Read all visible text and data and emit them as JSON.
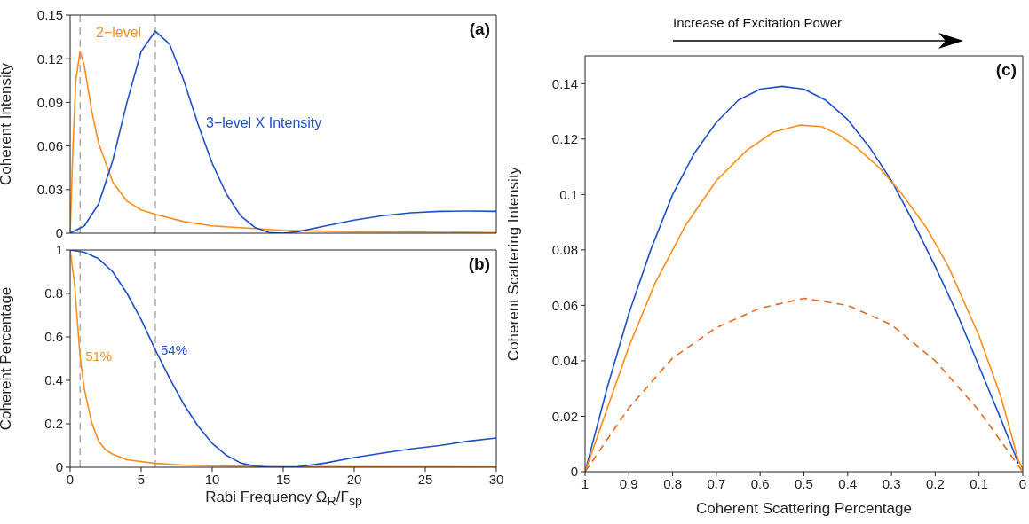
{
  "chart_data": [
    {
      "type": "line",
      "ylabel": "Coherent Intensity",
      "xlim": [
        0,
        30
      ],
      "xticks": [
        0,
        5,
        10,
        15,
        20,
        25,
        30
      ],
      "ylim": [
        0,
        0.15
      ],
      "yticks": [
        0,
        0.03,
        0.06,
        0.09,
        0.12,
        0.15
      ],
      "tick_labels": "y",
      "marker": "none",
      "line_style": "solid",
      "annotations": [
        "(a)"
      ],
      "ref_lines": [
        {
          "axis": "x",
          "value": 0.7,
          "label": null,
          "color": "#a0a0a0",
          "line_style": "dashed"
        },
        {
          "axis": "x",
          "value": 6,
          "label": null,
          "color": "#a0a0a0",
          "line_style": "dashed"
        }
      ],
      "series": [
        {
          "name": "2−level",
          "color": "#ff8c1a",
          "x": [
            0,
            0.2,
            0.4,
            0.7,
            1,
            1.5,
            2,
            3,
            4,
            5,
            6,
            8,
            10,
            15,
            20,
            30
          ],
          "values": [
            0,
            0.06,
            0.105,
            0.125,
            0.115,
            0.085,
            0.062,
            0.035,
            0.022,
            0.016,
            0.013,
            0.008,
            0.005,
            0.002,
            0.001,
            0.0005
          ]
        },
        {
          "name": "3−level X Intensity",
          "color": "#1f4fc8",
          "x": [
            0,
            1,
            2,
            3,
            4,
            5,
            6,
            7,
            8,
            9,
            10,
            11,
            12,
            13,
            14,
            15,
            16,
            18,
            20,
            22,
            24,
            26,
            28,
            30
          ],
          "values": [
            0,
            0.005,
            0.02,
            0.05,
            0.09,
            0.125,
            0.139,
            0.13,
            0.105,
            0.075,
            0.048,
            0.027,
            0.012,
            0.004,
            0.0005,
            0,
            0.001,
            0.005,
            0.009,
            0.012,
            0.014,
            0.015,
            0.0152,
            0.015
          ]
        }
      ]
    },
    {
      "type": "line",
      "xlabel": "Rabi Frequency Ω$_{R}$/Γ$_{sp}$",
      "ylabel": "Coherent Percentage",
      "xlim": [
        0,
        30
      ],
      "xticks": [
        0,
        5,
        10,
        15,
        20,
        25,
        30
      ],
      "ylim": [
        0,
        1
      ],
      "yticks": [
        0,
        0.2,
        0.4,
        0.6,
        0.8,
        1
      ],
      "marker": "none",
      "line_style": "solid",
      "annotations": [
        "(b)",
        {
          "text": "51%",
          "x": 0.7,
          "y": 0.51
        },
        {
          "text": "54%",
          "x": 6,
          "y": 0.54
        }
      ],
      "ref_lines": [
        {
          "axis": "x",
          "value": 0.7,
          "label": null,
          "color": "#a0a0a0",
          "line_style": "dashed"
        },
        {
          "axis": "x",
          "value": 6,
          "label": null,
          "color": "#a0a0a0",
          "line_style": "dashed"
        }
      ],
      "series": [
        {
          "color": "#ff8c1a",
          "x": [
            0,
            0.3,
            0.7,
            1,
            1.5,
            2,
            2.5,
            3,
            4,
            6,
            8,
            10,
            15,
            30
          ],
          "values": [
            1,
            0.85,
            0.51,
            0.36,
            0.21,
            0.12,
            0.08,
            0.06,
            0.035,
            0.018,
            0.01,
            0.006,
            0.003,
            0.001
          ]
        },
        {
          "color": "#1f4fc8",
          "x": [
            0,
            1,
            2,
            3,
            4,
            5,
            6,
            7,
            8,
            9,
            10,
            11,
            12,
            13,
            14,
            15,
            16,
            18,
            20,
            22,
            24,
            26,
            28,
            30
          ],
          "values": [
            1,
            0.99,
            0.96,
            0.9,
            0.8,
            0.68,
            0.54,
            0.41,
            0.29,
            0.19,
            0.11,
            0.055,
            0.02,
            0.005,
            0,
            0,
            0.002,
            0.02,
            0.045,
            0.065,
            0.085,
            0.1,
            0.12,
            0.135
          ]
        }
      ]
    },
    {
      "type": "line",
      "xlabel": "Coherent Scattering Percentage",
      "ylabel": "Coherent Scattering Intensity",
      "xlim": [
        1,
        0
      ],
      "xticks": [
        1,
        0.9,
        0.8,
        0.7,
        0.6,
        0.5,
        0.4,
        0.3,
        0.2,
        0.1,
        0
      ],
      "ylim": [
        0,
        0.15
      ],
      "yticks": [
        0,
        0.02,
        0.04,
        0.06,
        0.08,
        0.1,
        0.12,
        0.14
      ],
      "marker": "none",
      "annotations": [
        "(c)",
        "Increase of Excitation Power"
      ],
      "series": [
        {
          "color": "#1f4fc8",
          "line_style": "solid",
          "x": [
            1,
            0.95,
            0.9,
            0.85,
            0.8,
            0.75,
            0.7,
            0.65,
            0.6,
            0.55,
            0.5,
            0.45,
            0.4,
            0.35,
            0.3,
            0.25,
            0.2,
            0.15,
            0.1,
            0.05,
            0.01
          ],
          "values": [
            0,
            0.03,
            0.057,
            0.08,
            0.1,
            0.115,
            0.126,
            0.134,
            0.138,
            0.139,
            0.138,
            0.134,
            0.127,
            0.117,
            0.105,
            0.09,
            0.074,
            0.057,
            0.038,
            0.019,
            0.003
          ]
        },
        {
          "color": "#ff8c1a",
          "line_style": "solid",
          "x": [
            1,
            0.9,
            0.84,
            0.77,
            0.7,
            0.63,
            0.57,
            0.51,
            0.46,
            0.42,
            0.38,
            0.33,
            0.28,
            0.22,
            0.17,
            0.1,
            0.05,
            0.01,
            0
          ],
          "values": [
            0,
            0.045,
            0.068,
            0.089,
            0.105,
            0.116,
            0.1225,
            0.125,
            0.1245,
            0.1215,
            0.117,
            0.11,
            0.101,
            0.088,
            0.074,
            0.049,
            0.027,
            0.004,
            0.001
          ]
        },
        {
          "color": "#e8691e",
          "line_style": "dashed",
          "x": [
            1,
            0.9,
            0.8,
            0.7,
            0.6,
            0.5,
            0.4,
            0.3,
            0.2,
            0.1,
            0
          ],
          "values": [
            0,
            0.023,
            0.041,
            0.052,
            0.059,
            0.0625,
            0.06,
            0.053,
            0.04,
            0.022,
            0
          ]
        }
      ]
    }
  ]
}
